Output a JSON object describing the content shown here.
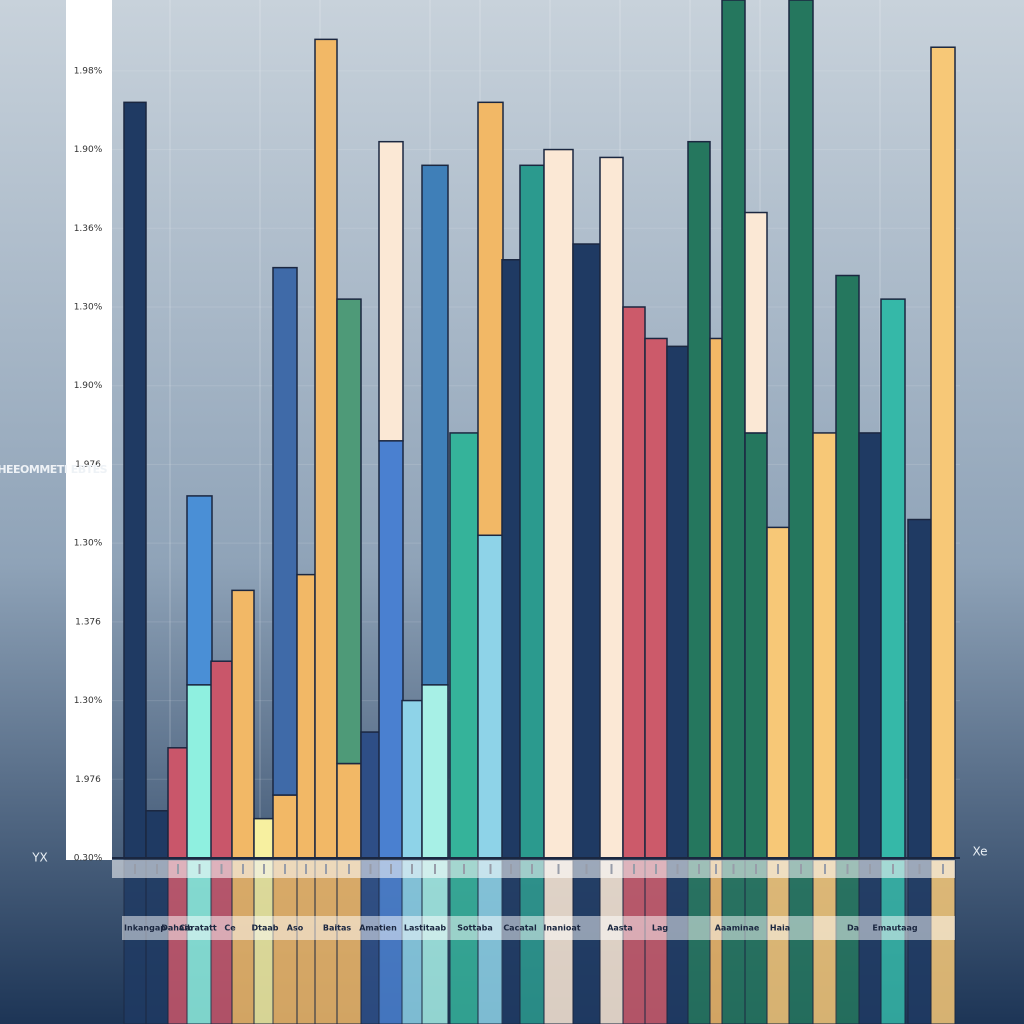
{
  "chart_data": {
    "type": "bar",
    "y_label": "ANQOHEEOMMETI EBTES",
    "x_axis_left": "YX",
    "x_axis_right": "Xe",
    "ylim": [
      0,
      10.9
    ],
    "yticks": [
      {
        "value": 0,
        "label": "0.30%"
      },
      {
        "value": 1,
        "label": "1.976"
      },
      {
        "value": 2,
        "label": "1.30%"
      },
      {
        "value": 3,
        "label": "1.376"
      },
      {
        "value": 4,
        "label": "1.30%"
      },
      {
        "value": 5,
        "label": "1.976"
      },
      {
        "value": 6,
        "label": "1.90%"
      },
      {
        "value": 7,
        "label": "1.30%"
      },
      {
        "value": 8,
        "label": "1.36%"
      },
      {
        "value": 9,
        "label": "1.90%"
      },
      {
        "value": 10,
        "label": "1.98%"
      }
    ],
    "grid": true,
    "bars": [
      {
        "values": [
          9.6
        ],
        "colors": [
          "#1f3a63"
        ]
      },
      {
        "values": [
          0.6
        ],
        "colors": [
          "#1f3a63"
        ]
      },
      {
        "values": [
          1.4
        ],
        "colors": [
          "#c9566a"
        ]
      },
      {
        "values": [
          2.2,
          2.4
        ],
        "colors": [
          "#8ff0e0",
          "#4a8fd6"
        ]
      },
      {
        "values": [
          2.5
        ],
        "colors": [
          "#c9566a"
        ]
      },
      {
        "values": [
          3.4
        ],
        "colors": [
          "#f2b866"
        ]
      },
      {
        "values": [
          0.5
        ],
        "colors": [
          "#f7f0a0"
        ]
      },
      {
        "values": [
          0.8,
          6.7
        ],
        "colors": [
          "#f2b866",
          "#3f6aa8"
        ]
      },
      {
        "values": [
          3.6
        ],
        "colors": [
          "#f2b866"
        ]
      },
      {
        "values": [
          10.4
        ],
        "colors": [
          "#f2b866"
        ]
      },
      {
        "values": [
          1.2,
          5.9
        ],
        "colors": [
          "#f2b866",
          "#4e9a78"
        ]
      },
      {
        "values": [
          1.6
        ],
        "colors": [
          "#2e4e86"
        ]
      },
      {
        "values": [
          5.3,
          3.8
        ],
        "colors": [
          "#4a80d0",
          "#fbe8d5"
        ]
      },
      {
        "values": [
          2.0
        ],
        "colors": [
          "#8ed3e8"
        ]
      },
      {
        "values": [
          2.2,
          6.6
        ],
        "colors": [
          "#a7f0e6",
          "#3f7fb8"
        ]
      },
      {
        "values": [
          5.4
        ],
        "colors": [
          "#35b39a"
        ]
      },
      {
        "values": [
          4.1,
          5.5
        ],
        "colors": [
          "#8ed3e8",
          "#f2b866"
        ]
      },
      {
        "values": [
          7.6
        ],
        "colors": [
          "#1f3a63"
        ]
      },
      {
        "values": [
          8.8
        ],
        "colors": [
          "#2b9a8e"
        ]
      },
      {
        "values": [
          9.0
        ],
        "colors": [
          "#fbe8d5"
        ]
      },
      {
        "values": [
          7.8
        ],
        "colors": [
          "#1f3a63"
        ]
      },
      {
        "values": [
          8.9
        ],
        "colors": [
          "#fbe8d5"
        ]
      },
      {
        "values": [
          7.0
        ],
        "colors": [
          "#cc5a6a"
        ]
      },
      {
        "values": [
          6.6
        ],
        "colors": [
          "#cc5a6a"
        ]
      },
      {
        "values": [
          6.5
        ],
        "colors": [
          "#1f3a63"
        ]
      },
      {
        "values": [
          9.1
        ],
        "colors": [
          "#25775e"
        ]
      },
      {
        "values": [
          6.6
        ],
        "colors": [
          "#f2b866"
        ]
      },
      {
        "values": [
          10.9
        ],
        "colors": [
          "#25775e"
        ]
      },
      {
        "values": [
          5.4,
          2.8
        ],
        "colors": [
          "#25775e",
          "#fbe8d5"
        ]
      },
      {
        "values": [
          4.2
        ],
        "colors": [
          "#f7c877"
        ]
      },
      {
        "values": [
          10.9
        ],
        "colors": [
          "#25775e"
        ]
      },
      {
        "values": [
          5.4
        ],
        "colors": [
          "#f7c877"
        ]
      },
      {
        "values": [
          7.4
        ],
        "colors": [
          "#25775e"
        ]
      },
      {
        "values": [
          5.4
        ],
        "colors": [
          "#1f3a63"
        ]
      },
      {
        "values": [
          7.1
        ],
        "colors": [
          "#35b8a8"
        ]
      },
      {
        "values": [
          4.3
        ],
        "colors": [
          "#1f3a63"
        ]
      },
      {
        "values": [
          10.3
        ],
        "colors": [
          "#f7c877"
        ]
      }
    ],
    "footer_labels": [
      "Inkangap",
      "Dahaib",
      "Caratatt",
      "Ce",
      "Dtaab",
      "Aso",
      "Baitas",
      "Amatien",
      "Lastitaab",
      "Sottaba",
      "Cacatal",
      "Inanioat",
      "Aasta",
      "Lag",
      "Aaaminae",
      "Haia",
      "Da",
      "Emautaag"
    ]
  }
}
